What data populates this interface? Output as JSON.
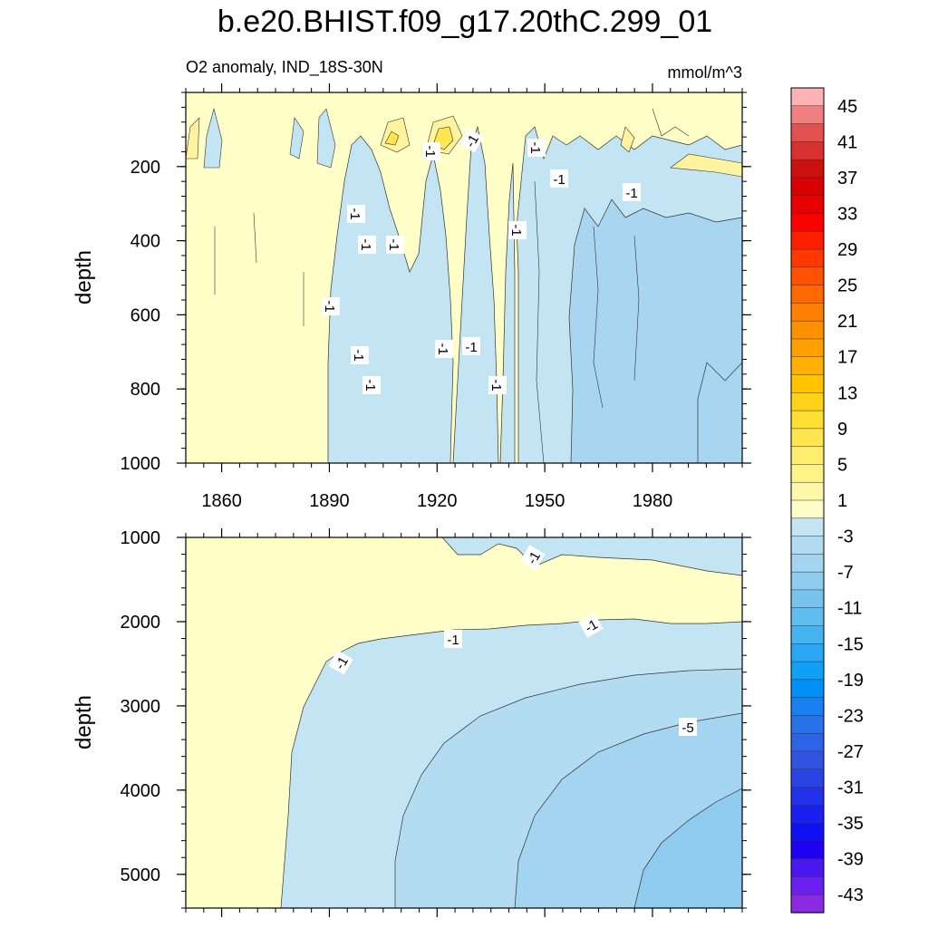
{
  "chart_data": {
    "type": "contour",
    "title": "b.e20.BHIST.f09_g17.20thC.299_01",
    "subtitle_left": "O2 anomaly, IND_18S-30N",
    "subtitle_right": "mmol/m^3",
    "ylabel": "depth",
    "xlim": [
      1850,
      2005
    ],
    "xticks": [
      1860,
      1890,
      1920,
      1950,
      1980
    ],
    "xtick_labels": [
      "1860",
      "1890",
      "1920",
      "1950",
      "1980"
    ],
    "panels": [
      {
        "name": "upper",
        "ylim": [
          0,
          1000
        ],
        "yticks": [
          200,
          400,
          600,
          800,
          1000
        ],
        "ytick_labels": [
          "200",
          "400",
          "600",
          "800",
          "1000"
        ],
        "contour_labels": [
          "-1",
          "-1",
          "-1",
          "-1",
          "-1",
          "-1",
          "-1",
          "-1",
          "-1",
          "-1",
          "-1",
          "-1",
          "-1",
          "-1",
          "-1",
          "-1",
          "-1"
        ]
      },
      {
        "name": "lower",
        "ylim": [
          1000,
          5400
        ],
        "yticks": [
          1000,
          2000,
          3000,
          4000,
          5000
        ],
        "ytick_labels": [
          "1000",
          "2000",
          "3000",
          "4000",
          "5000"
        ],
        "contour_labels": [
          "-1",
          "-1",
          "-1",
          "-1",
          "-5"
        ]
      }
    ],
    "colorbar": {
      "levels": [
        45,
        41,
        37,
        33,
        29,
        25,
        21,
        17,
        13,
        9,
        5,
        1,
        -3,
        -7,
        -11,
        -15,
        -19,
        -23,
        -27,
        -31,
        -35,
        -39,
        -43
      ],
      "labels": [
        "45",
        "41",
        "37",
        "33",
        "29",
        "25",
        "21",
        "17",
        "13",
        "9",
        "5",
        "1",
        "-3",
        "-7",
        "-11",
        "-15",
        "-19",
        "-23",
        "-27",
        "-31",
        "-35",
        "-39",
        "-43"
      ],
      "colors": [
        "#fbb3b3",
        "#f08080",
        "#e25050",
        "#d93030",
        "#cc1010",
        "#d80000",
        "#e80000",
        "#ff0000",
        "#ff1e00",
        "#ff3800",
        "#ff5200",
        "#ff6a00",
        "#ff7f00",
        "#ff9000",
        "#ffa000",
        "#ffb000",
        "#ffc300",
        "#ffd21a",
        "#ffde33",
        "#ffe650",
        "#ffee6e",
        "#fff38a",
        "#fff8a8",
        "#ffffc8",
        "#c3e4f2",
        "#b3dcf2",
        "#a3d4f0",
        "#8fcbee",
        "#78c2ee",
        "#5fbdf0",
        "#45b5f2",
        "#2aa8f5",
        "#10a0f8",
        "#0090f8",
        "#1880f0",
        "#2872ea",
        "#2d63e6",
        "#3054e0",
        "#2a44e4",
        "#2232ea",
        "#1a20f0",
        "#1010f4",
        "#2000f0",
        "#4818ee",
        "#6a20ee",
        "#8a2be2"
      ]
    }
  }
}
